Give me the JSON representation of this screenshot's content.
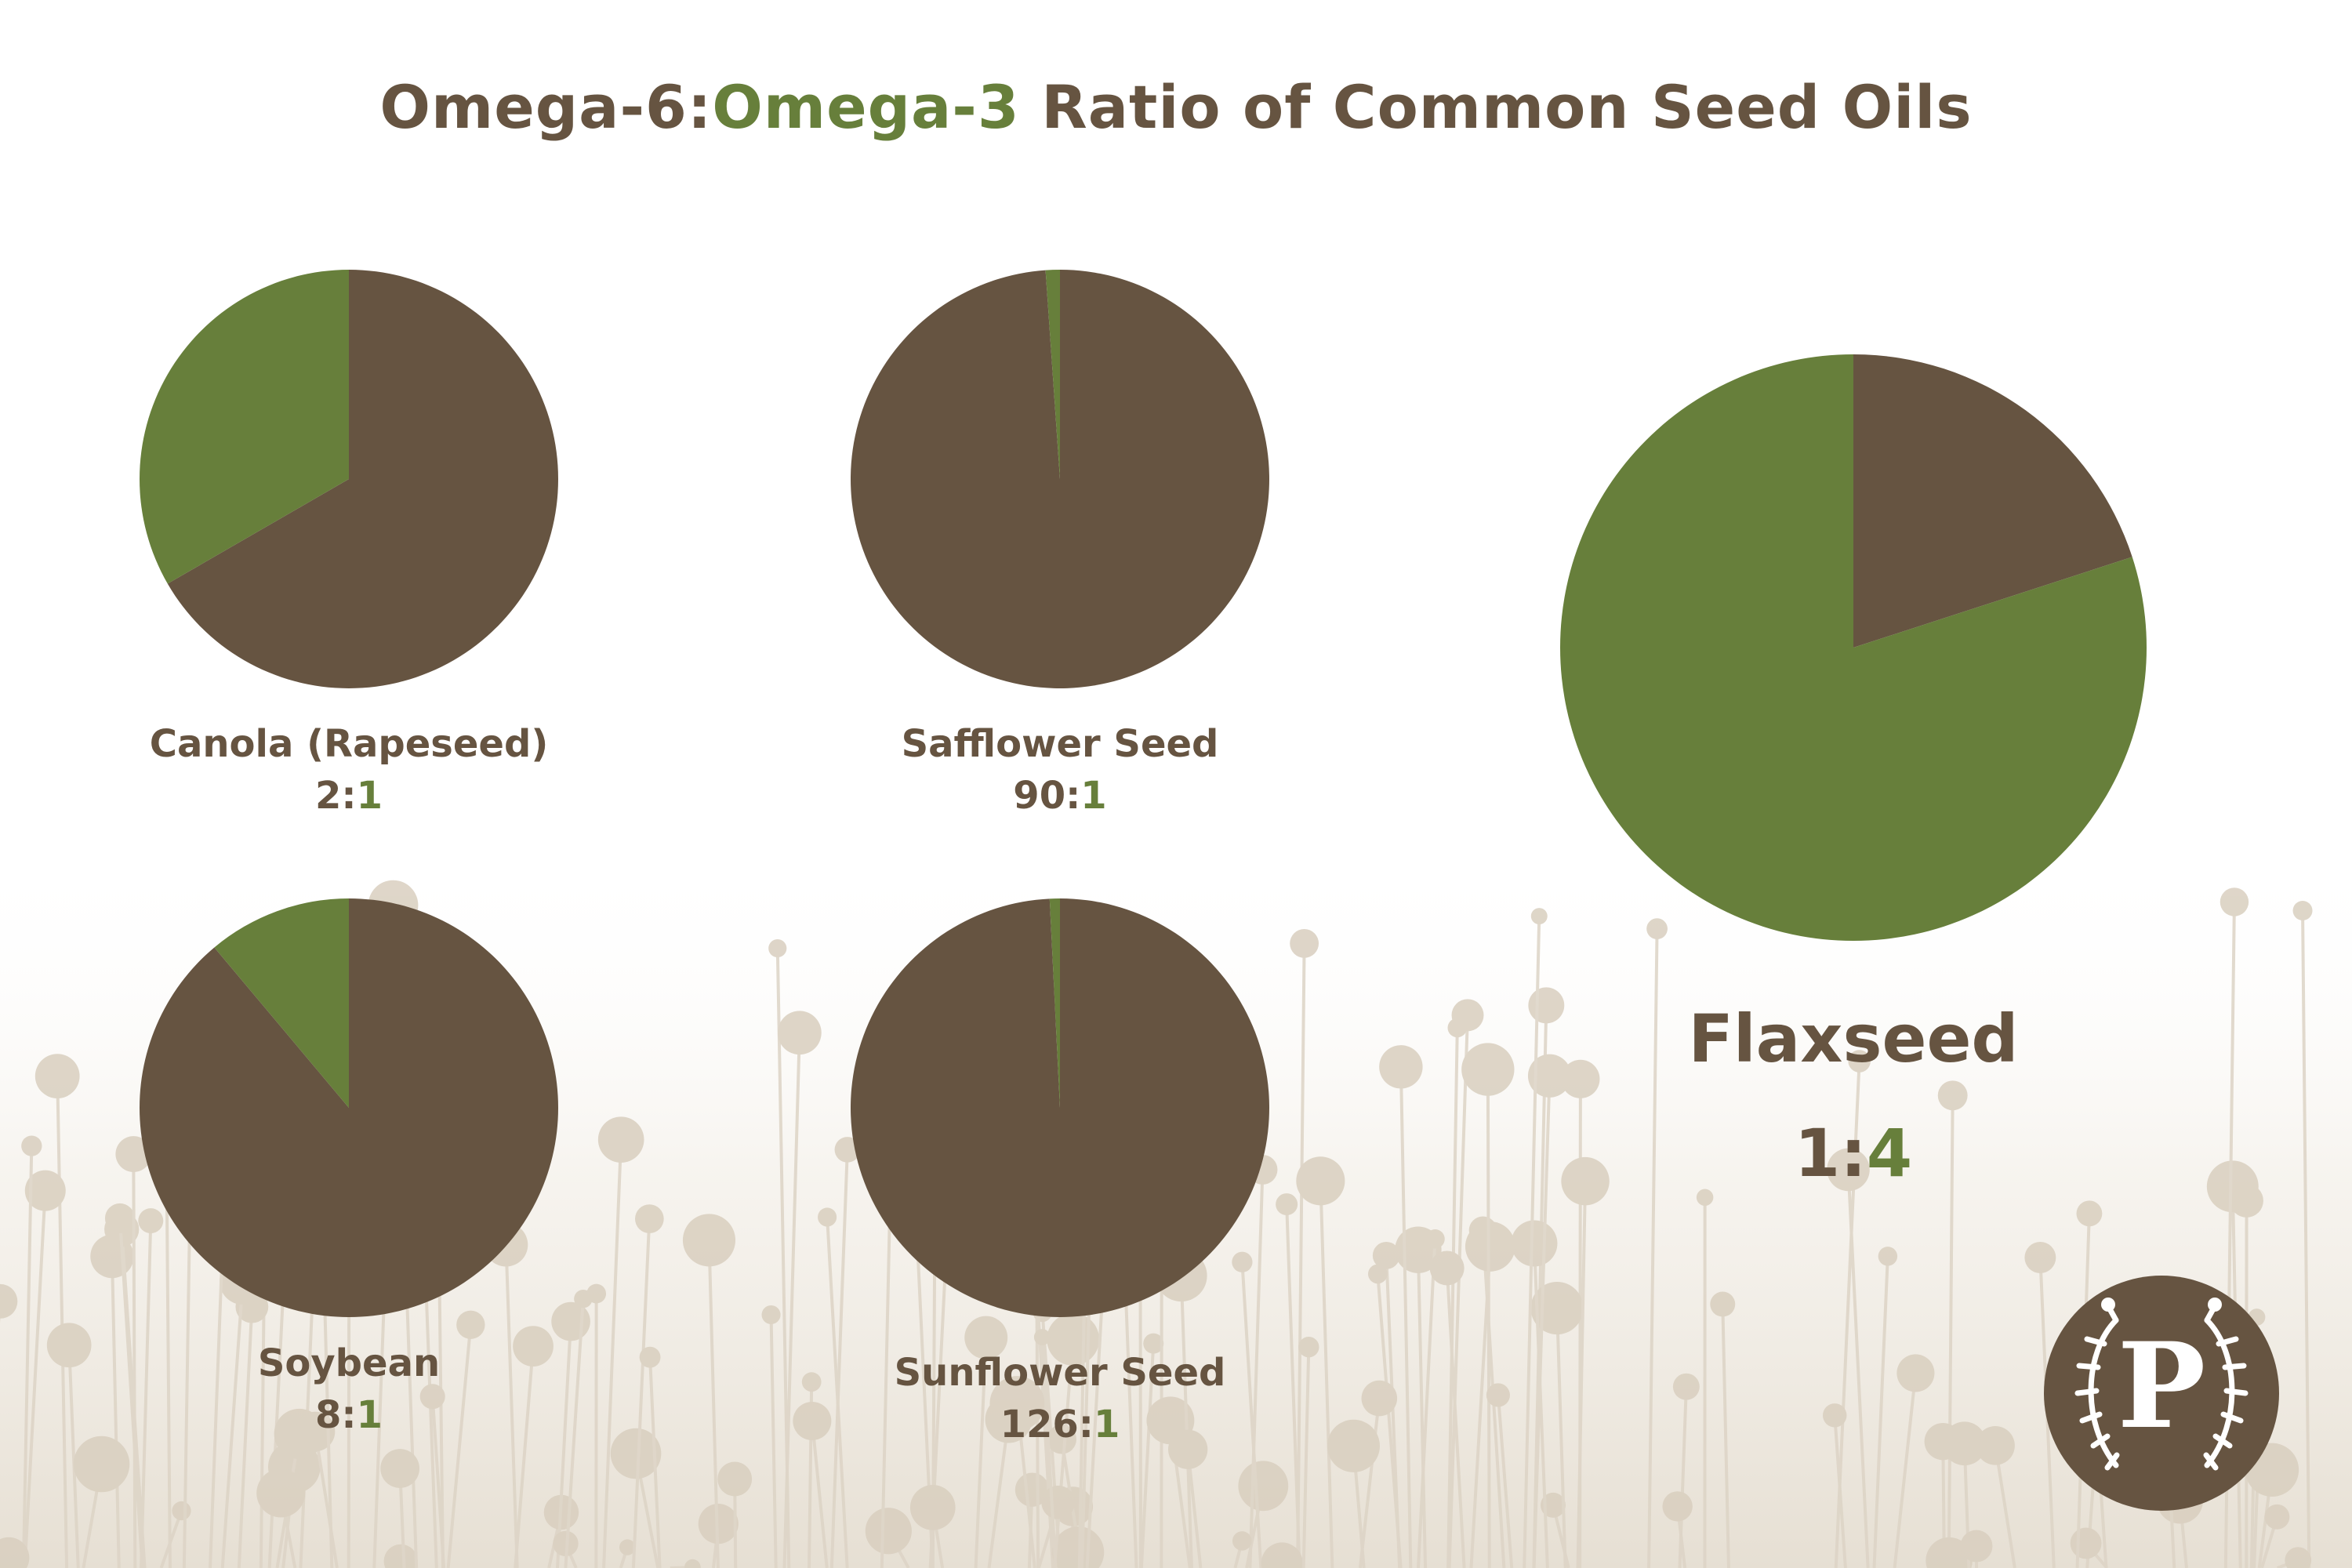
{
  "title": {
    "part_omega6": "Omega-6:",
    "part_omega3": "Omega-3",
    "part_rest": " Ratio of Common Seed Oils"
  },
  "colors": {
    "omega6": "#665441",
    "omega3": "#677f3b",
    "background_haze": "#ddd4c6"
  },
  "logo": {
    "icon": "p-monogram-wreath-icon",
    "letter": "P"
  },
  "chart_data": [
    {
      "type": "pie",
      "name": "Canola (Rapeseed)",
      "ratio_left": "2",
      "ratio_right": "1",
      "omega6": 2,
      "omega3": 1
    },
    {
      "type": "pie",
      "name": "Safflower Seed",
      "ratio_left": "90",
      "ratio_right": "1",
      "omega6": 90,
      "omega3": 1
    },
    {
      "type": "pie",
      "name": "Soybean",
      "ratio_left": "8",
      "ratio_right": "1",
      "omega6": 8,
      "omega3": 1
    },
    {
      "type": "pie",
      "name": "Sunflower Seed",
      "ratio_left": "126",
      "ratio_right": "1",
      "omega6": 126,
      "omega3": 1
    },
    {
      "type": "pie",
      "name": "Flaxseed",
      "ratio_left": "1",
      "ratio_right": "4",
      "omega6": 1,
      "omega3": 4
    }
  ]
}
